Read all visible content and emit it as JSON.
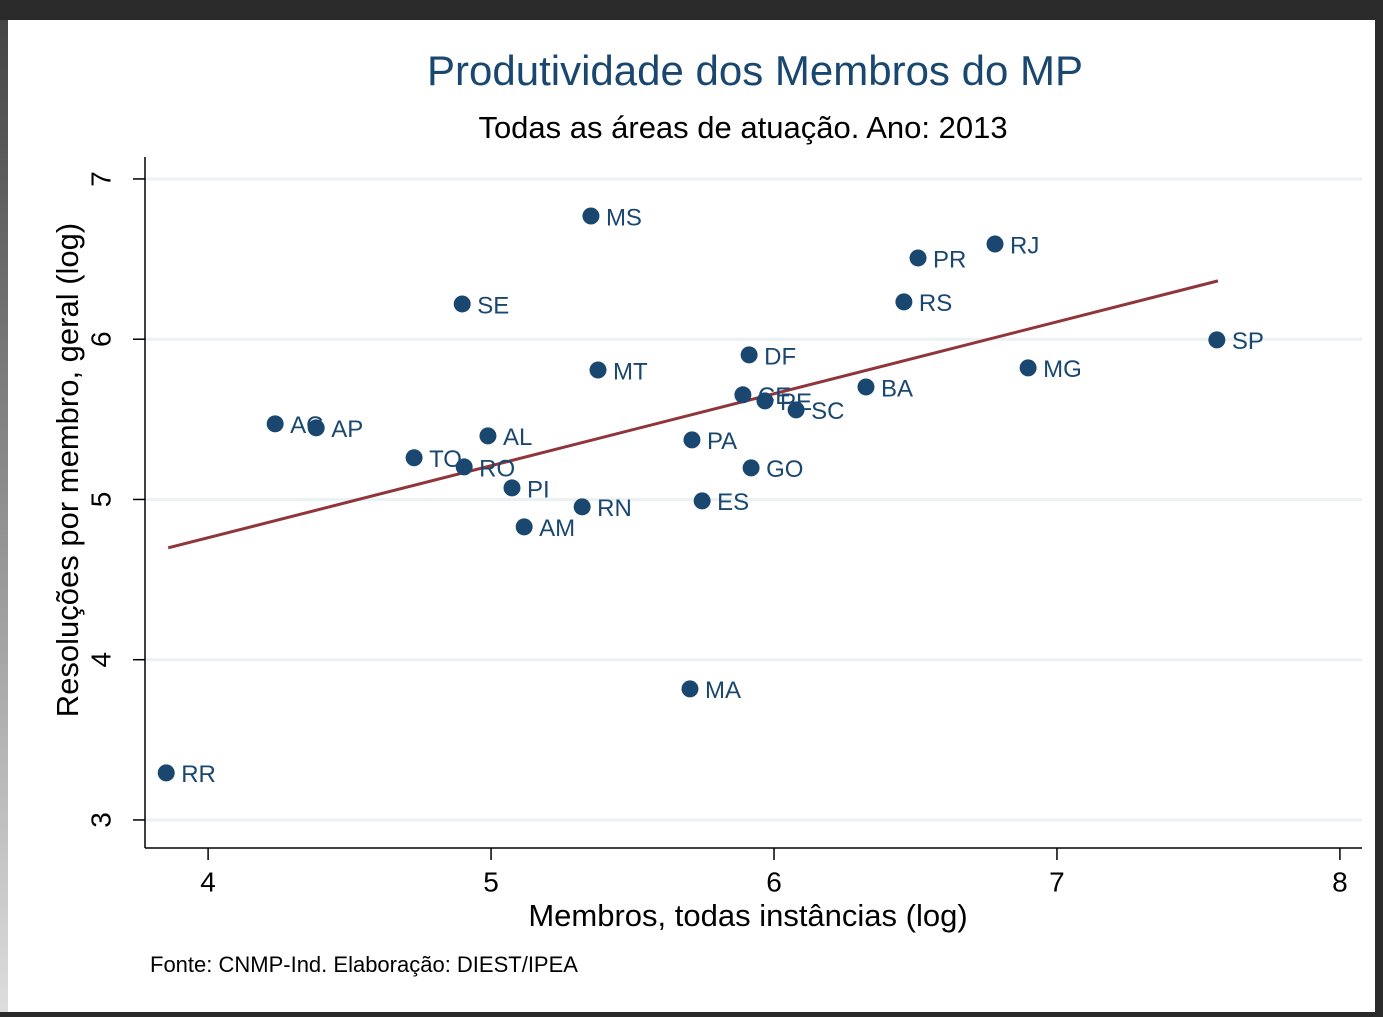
{
  "chart_data": {
    "type": "scatter",
    "title": "Produtividade dos Membros do MP",
    "subtitle": "Todas as áreas de atuação. Ano: 2013",
    "x_label": "Membros, todas instâncias (log)",
    "y_label": "Resoluções por membro, geral (log)",
    "note": "Fonte: CNMP-Ind. Elaboração: DIEST/IPEA",
    "color": "#1a476f",
    "points": {
      "labels": [
        "AC",
        "AP",
        "TO",
        "RO",
        "AL",
        "PI",
        "AM",
        "SE",
        "MS",
        "MT",
        "RN",
        "MA",
        "PA",
        "ES",
        "DF",
        "CE",
        "PE",
        "SC",
        "GO",
        "BA",
        "RS",
        "PR",
        "RJ",
        "MG",
        "SP",
        "RR"
      ],
      "x": [
        4.237,
        4.382,
        4.728,
        4.905,
        4.989,
        5.074,
        5.117,
        4.898,
        5.353,
        5.378,
        5.322,
        5.703,
        5.71,
        5.746,
        5.912,
        5.89,
        5.968,
        6.078,
        5.919,
        6.325,
        6.459,
        6.509,
        6.781,
        6.898,
        7.565,
        3.852
      ],
      "y": [
        5.472,
        5.447,
        5.26,
        5.203,
        5.397,
        5.072,
        4.829,
        6.22,
        6.769,
        5.808,
        4.954,
        3.818,
        5.372,
        4.991,
        5.902,
        5.653,
        5.615,
        5.559,
        5.197,
        5.702,
        6.233,
        6.507,
        6.594,
        5.821,
        5.996,
        3.294
      ]
    },
    "fit": {
      "x": [
        3.859,
        7.569
      ],
      "y": [
        4.698,
        6.364
      ],
      "color": "#90353b"
    },
    "xlim": [
      3.777,
      8.078
    ],
    "ylim": [
      2.825,
      7.137
    ],
    "xticks": [
      4,
      5,
      6,
      7,
      8
    ],
    "yticks": [
      3,
      4,
      5,
      6,
      7
    ],
    "grid": true
  }
}
